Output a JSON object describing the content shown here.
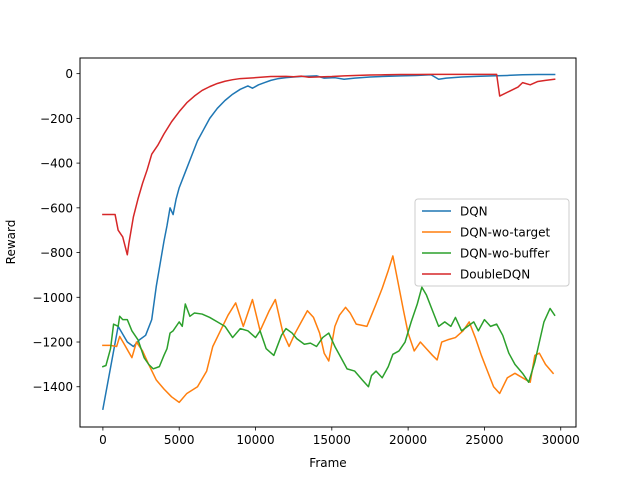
{
  "chart_data": {
    "type": "line",
    "xlabel": "Frame",
    "ylabel": "Reward",
    "xlim": [
      -1500,
      31000
    ],
    "ylim": [
      -1580,
      70
    ],
    "xticks": [
      0,
      5000,
      10000,
      15000,
      20000,
      25000,
      30000
    ],
    "xtick_labels": [
      "0",
      "5000",
      "10000",
      "15000",
      "20000",
      "25000",
      "30000"
    ],
    "yticks": [
      0,
      -200,
      -400,
      -600,
      -800,
      -1000,
      -1200,
      -1400
    ],
    "ytick_labels": [
      "0",
      "−200",
      "−400",
      "−600",
      "−800",
      "−1000",
      "−1200",
      "−1400"
    ],
    "grid": false,
    "legend_position": "center-right",
    "series": [
      {
        "name": "DQN",
        "color": "#1f77b4",
        "points": [
          [
            0,
            -1500
          ],
          [
            1000,
            -1130
          ],
          [
            1600,
            -1200
          ],
          [
            2000,
            -1220
          ],
          [
            2400,
            -1190
          ],
          [
            2800,
            -1170
          ],
          [
            3200,
            -1100
          ],
          [
            3500,
            -950
          ],
          [
            4000,
            -750
          ],
          [
            4200,
            -680
          ],
          [
            4400,
            -600
          ],
          [
            4600,
            -630
          ],
          [
            4800,
            -560
          ],
          [
            5000,
            -510
          ],
          [
            5400,
            -440
          ],
          [
            5800,
            -370
          ],
          [
            6200,
            -300
          ],
          [
            6600,
            -250
          ],
          [
            7000,
            -200
          ],
          [
            7500,
            -155
          ],
          [
            8000,
            -120
          ],
          [
            8500,
            -92
          ],
          [
            9000,
            -70
          ],
          [
            9500,
            -55
          ],
          [
            9800,
            -65
          ],
          [
            10200,
            -50
          ],
          [
            10600,
            -40
          ],
          [
            11000,
            -30
          ],
          [
            11500,
            -22
          ],
          [
            12000,
            -18
          ],
          [
            12500,
            -15
          ],
          [
            13000,
            -13
          ],
          [
            14000,
            -10
          ],
          [
            14500,
            -20
          ],
          [
            15200,
            -18
          ],
          [
            15800,
            -25
          ],
          [
            16500,
            -20
          ],
          [
            17500,
            -15
          ],
          [
            18500,
            -12
          ],
          [
            19500,
            -10
          ],
          [
            20500,
            -8
          ],
          [
            21500,
            -5
          ],
          [
            22000,
            -25
          ],
          [
            22500,
            -20
          ],
          [
            23500,
            -15
          ],
          [
            24500,
            -12
          ],
          [
            25500,
            -10
          ],
          [
            26500,
            -8
          ],
          [
            27500,
            -5
          ],
          [
            28500,
            -4
          ],
          [
            29600,
            -4
          ]
        ]
      },
      {
        "name": "DQN-wo-target",
        "color": "#ff7f0e",
        "points": [
          [
            0,
            -1215
          ],
          [
            500,
            -1215
          ],
          [
            900,
            -1220
          ],
          [
            1100,
            -1175
          ],
          [
            1400,
            -1210
          ],
          [
            1900,
            -1270
          ],
          [
            2200,
            -1200
          ],
          [
            2600,
            -1240
          ],
          [
            3000,
            -1300
          ],
          [
            3500,
            -1370
          ],
          [
            4000,
            -1410
          ],
          [
            4500,
            -1445
          ],
          [
            5000,
            -1470
          ],
          [
            5500,
            -1430
          ],
          [
            6200,
            -1400
          ],
          [
            6800,
            -1330
          ],
          [
            7200,
            -1220
          ],
          [
            7700,
            -1150
          ],
          [
            8200,
            -1080
          ],
          [
            8700,
            -1025
          ],
          [
            9200,
            -1130
          ],
          [
            9800,
            -1010
          ],
          [
            10300,
            -1150
          ],
          [
            10900,
            -1060
          ],
          [
            11300,
            -1010
          ],
          [
            11800,
            -1160
          ],
          [
            12200,
            -1220
          ],
          [
            12600,
            -1160
          ],
          [
            13000,
            -1110
          ],
          [
            13400,
            -1060
          ],
          [
            13800,
            -1090
          ],
          [
            14200,
            -1160
          ],
          [
            14500,
            -1250
          ],
          [
            14800,
            -1285
          ],
          [
            15200,
            -1130
          ],
          [
            15500,
            -1080
          ],
          [
            15900,
            -1045
          ],
          [
            16200,
            -1070
          ],
          [
            16600,
            -1120
          ],
          [
            17300,
            -1130
          ],
          [
            17600,
            -1080
          ],
          [
            17900,
            -1030
          ],
          [
            18300,
            -960
          ],
          [
            18700,
            -880
          ],
          [
            19000,
            -815
          ],
          [
            19300,
            -920
          ],
          [
            19700,
            -1060
          ],
          [
            20000,
            -1160
          ],
          [
            20400,
            -1240
          ],
          [
            20800,
            -1200
          ],
          [
            21200,
            -1230
          ],
          [
            21600,
            -1260
          ],
          [
            21900,
            -1280
          ],
          [
            22200,
            -1200
          ],
          [
            22600,
            -1190
          ],
          [
            23100,
            -1180
          ],
          [
            23600,
            -1150
          ],
          [
            24000,
            -1110
          ],
          [
            24400,
            -1180
          ],
          [
            24800,
            -1260
          ],
          [
            25200,
            -1330
          ],
          [
            25600,
            -1400
          ],
          [
            26000,
            -1430
          ],
          [
            26500,
            -1360
          ],
          [
            27000,
            -1340
          ],
          [
            27500,
            -1360
          ],
          [
            28000,
            -1380
          ],
          [
            28300,
            -1260
          ],
          [
            28600,
            -1250
          ],
          [
            29000,
            -1300
          ],
          [
            29500,
            -1340
          ]
        ]
      },
      {
        "name": "DQN-wo-buffer",
        "color": "#2ca02c",
        "points": [
          [
            0,
            -1310
          ],
          [
            200,
            -1305
          ],
          [
            500,
            -1230
          ],
          [
            700,
            -1120
          ],
          [
            1000,
            -1130
          ],
          [
            1100,
            -1085
          ],
          [
            1300,
            -1100
          ],
          [
            1600,
            -1100
          ],
          [
            1900,
            -1150
          ],
          [
            2300,
            -1190
          ],
          [
            2700,
            -1270
          ],
          [
            3000,
            -1300
          ],
          [
            3300,
            -1320
          ],
          [
            3700,
            -1310
          ],
          [
            4000,
            -1260
          ],
          [
            4200,
            -1230
          ],
          [
            4400,
            -1160
          ],
          [
            4600,
            -1150
          ],
          [
            5000,
            -1110
          ],
          [
            5200,
            -1130
          ],
          [
            5400,
            -1030
          ],
          [
            5700,
            -1085
          ],
          [
            6000,
            -1070
          ],
          [
            6500,
            -1075
          ],
          [
            7000,
            -1090
          ],
          [
            7500,
            -1110
          ],
          [
            8000,
            -1130
          ],
          [
            8500,
            -1180
          ],
          [
            9000,
            -1140
          ],
          [
            9500,
            -1150
          ],
          [
            10000,
            -1180
          ],
          [
            10300,
            -1150
          ],
          [
            10700,
            -1230
          ],
          [
            11200,
            -1260
          ],
          [
            11700,
            -1170
          ],
          [
            12000,
            -1140
          ],
          [
            12400,
            -1160
          ],
          [
            12700,
            -1185
          ],
          [
            13200,
            -1210
          ],
          [
            13600,
            -1205
          ],
          [
            14000,
            -1220
          ],
          [
            14400,
            -1180
          ],
          [
            14800,
            -1160
          ],
          [
            15200,
            -1220
          ],
          [
            15600,
            -1270
          ],
          [
            16000,
            -1320
          ],
          [
            16500,
            -1330
          ],
          [
            17000,
            -1370
          ],
          [
            17400,
            -1400
          ],
          [
            17600,
            -1350
          ],
          [
            17900,
            -1330
          ],
          [
            18300,
            -1360
          ],
          [
            18700,
            -1310
          ],
          [
            19000,
            -1255
          ],
          [
            19400,
            -1240
          ],
          [
            19800,
            -1200
          ],
          [
            20200,
            -1110
          ],
          [
            20600,
            -1030
          ],
          [
            20900,
            -955
          ],
          [
            21200,
            -990
          ],
          [
            21600,
            -1060
          ],
          [
            22000,
            -1130
          ],
          [
            22400,
            -1110
          ],
          [
            22800,
            -1130
          ],
          [
            23100,
            -1090
          ],
          [
            23500,
            -1150
          ],
          [
            23900,
            -1130
          ],
          [
            24300,
            -1110
          ],
          [
            24600,
            -1150
          ],
          [
            25000,
            -1100
          ],
          [
            25400,
            -1130
          ],
          [
            25800,
            -1120
          ],
          [
            26200,
            -1170
          ],
          [
            26600,
            -1250
          ],
          [
            27000,
            -1300
          ],
          [
            27500,
            -1340
          ],
          [
            27900,
            -1380
          ],
          [
            28300,
            -1290
          ],
          [
            28600,
            -1200
          ],
          [
            28900,
            -1110
          ],
          [
            29300,
            -1050
          ],
          [
            29600,
            -1080
          ]
        ]
      },
      {
        "name": "DoubleDQN",
        "color": "#d62728",
        "points": [
          [
            0,
            -630
          ],
          [
            500,
            -630
          ],
          [
            800,
            -630
          ],
          [
            1000,
            -700
          ],
          [
            1300,
            -730
          ],
          [
            1600,
            -810
          ],
          [
            1700,
            -760
          ],
          [
            2000,
            -640
          ],
          [
            2300,
            -560
          ],
          [
            2600,
            -490
          ],
          [
            2900,
            -430
          ],
          [
            3200,
            -360
          ],
          [
            3600,
            -320
          ],
          [
            4000,
            -270
          ],
          [
            4500,
            -215
          ],
          [
            5000,
            -170
          ],
          [
            5500,
            -130
          ],
          [
            6000,
            -100
          ],
          [
            6500,
            -75
          ],
          [
            7000,
            -58
          ],
          [
            7500,
            -44
          ],
          [
            8000,
            -34
          ],
          [
            8500,
            -27
          ],
          [
            9000,
            -22
          ],
          [
            10000,
            -18
          ],
          [
            11000,
            -13
          ],
          [
            12000,
            -12
          ],
          [
            12500,
            -14
          ],
          [
            13000,
            -11
          ],
          [
            13500,
            -16
          ],
          [
            14500,
            -14
          ],
          [
            15000,
            -13
          ],
          [
            15800,
            -10
          ],
          [
            16500,
            -8
          ],
          [
            17500,
            -6
          ],
          [
            18500,
            -5
          ],
          [
            19500,
            -4
          ],
          [
            20500,
            -4
          ],
          [
            21500,
            -3
          ],
          [
            22500,
            -3
          ],
          [
            23500,
            -3
          ],
          [
            24500,
            -3
          ],
          [
            25800,
            -3
          ],
          [
            26000,
            -100
          ],
          [
            26600,
            -80
          ],
          [
            27200,
            -60
          ],
          [
            27500,
            -40
          ],
          [
            28000,
            -50
          ],
          [
            28500,
            -35
          ],
          [
            29000,
            -30
          ],
          [
            29600,
            -25
          ]
        ]
      }
    ]
  }
}
